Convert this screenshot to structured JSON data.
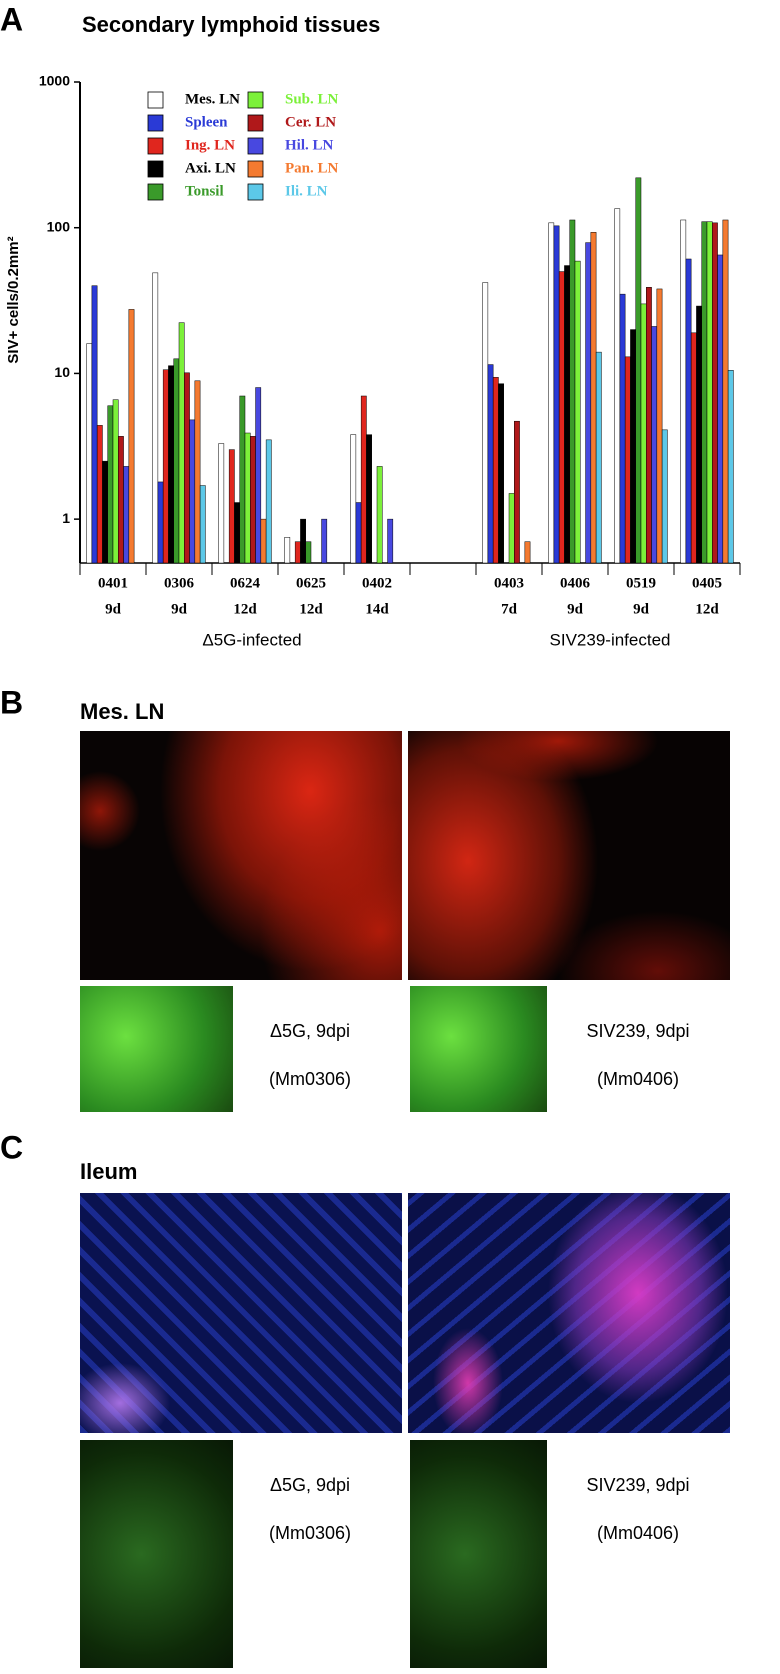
{
  "chart_data": {
    "type": "bar",
    "panel_label": "A",
    "title": "Secondary lymphoid tissues",
    "y_label": "SIV+ cells/0.2mm²",
    "log_scale": true,
    "ylim": [
      0.5,
      1000
    ],
    "yticks": [
      1,
      10,
      100,
      1000
    ],
    "categories": [
      "0401",
      "0306",
      "0624",
      "0625",
      "0402",
      null,
      "0403",
      "0406",
      "0519",
      "0405"
    ],
    "category_sublabels": [
      "9d",
      "9d",
      "12d",
      "12d",
      "14d",
      null,
      "7d",
      "9d",
      "9d",
      "12d"
    ],
    "group_labels": [
      "Δ5G-infected",
      "SIV239-infected"
    ],
    "series": [
      {
        "name": "Mes. LN",
        "color": "#ffffff",
        "values": [
          16,
          49,
          3.3,
          0.75,
          3.8,
          null,
          42,
          108,
          135,
          113
        ]
      },
      {
        "name": "Spleen",
        "color": "#2a3ad6",
        "values": [
          40,
          1.8,
          null,
          null,
          1.3,
          null,
          11.5,
          103,
          35,
          61
        ]
      },
      {
        "name": "Ing. LN",
        "color": "#e0261e",
        "values": [
          4.4,
          10.6,
          3.0,
          0.7,
          7,
          null,
          9.4,
          50,
          13,
          19
        ]
      },
      {
        "name": "Axi. LN",
        "color": "#000000",
        "values": [
          2.5,
          11.3,
          1.3,
          1.0,
          3.8,
          null,
          8.5,
          55,
          20,
          29
        ]
      },
      {
        "name": "Tonsil",
        "color": "#3a9a2a",
        "values": [
          6.0,
          12.6,
          7,
          0.7,
          null,
          null,
          null,
          113,
          220,
          110
        ]
      },
      {
        "name": "Sub. LN",
        "color": "#7cf03a",
        "values": [
          6.6,
          22.3,
          3.9,
          null,
          2.3,
          null,
          1.5,
          59,
          30,
          110
        ]
      },
      {
        "name": "Cer. LN",
        "color": "#b0181a",
        "values": [
          3.7,
          10.1,
          3.7,
          null,
          null,
          null,
          4.7,
          null,
          39,
          108
        ]
      },
      {
        "name": "Hil. LN",
        "color": "#4848e0",
        "values": [
          2.3,
          4.8,
          8,
          1.0,
          1.0,
          null,
          null,
          79,
          21,
          65
        ]
      },
      {
        "name": "Pan. LN",
        "color": "#f47a30",
        "values": [
          27.5,
          8.9,
          1.0,
          null,
          null,
          null,
          0.7,
          93,
          38,
          113
        ]
      },
      {
        "name": "Ili. LN",
        "color": "#5cc8e8",
        "values": [
          null,
          1.7,
          3.5,
          null,
          null,
          null,
          null,
          14,
          4.1,
          10.5
        ]
      }
    ]
  },
  "panel_b": {
    "label": "B",
    "title": "Mes. LN",
    "captions": [
      [
        "Δ5G, 9dpi",
        "(Mm0306)"
      ],
      [
        "SIV239, 9dpi",
        "(Mm0406)"
      ]
    ]
  },
  "panel_c": {
    "label": "C",
    "title": "Ileum",
    "captions": [
      [
        "Δ5G, 9dpi",
        "(Mm0306)"
      ],
      [
        "SIV239, 9dpi",
        "(Mm0406)"
      ]
    ]
  }
}
